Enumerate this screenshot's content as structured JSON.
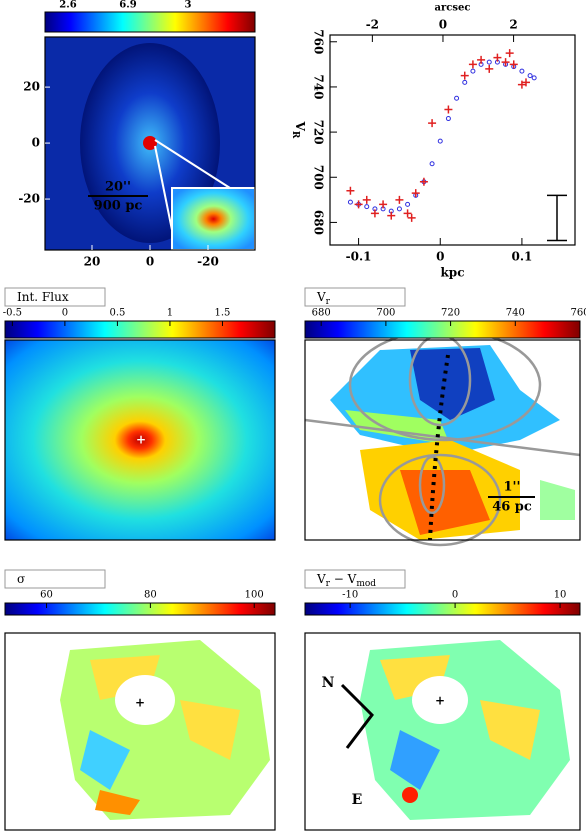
{
  "chart_data": [
    {
      "type": "image",
      "colorbar_labels": [
        "2.6",
        "6.9",
        "3"
      ],
      "xlim": [
        36.2,
        -36.2
      ],
      "xticks": [
        20,
        0,
        -20
      ],
      "ylim": [
        -38.2,
        37.9
      ],
      "yticks": [
        20,
        0,
        -20
      ],
      "annotations": [
        "20''",
        "900 pc"
      ]
    },
    {
      "type": "scatter",
      "x_label": "kpc",
      "x2_label": "arcsec",
      "y_label": "V",
      "y_label_sub": "R",
      "xlim": [
        -0.135,
        0.165
      ],
      "xticks": [
        -0.1,
        0,
        0.1
      ],
      "x2lim": [
        -3.2,
        3.74
      ],
      "x2ticks": [
        -2,
        0,
        2
      ],
      "ylim": [
        670,
        763
      ],
      "yticks": [
        680,
        700,
        720,
        740,
        760
      ],
      "series": [
        {
          "color": "#3030e0",
          "marker": "circle",
          "x": [
            -0.11,
            -0.1,
            -0.09,
            -0.08,
            -0.07,
            -0.06,
            -0.05,
            -0.04,
            -0.03,
            -0.02,
            -0.01,
            0,
            0.01,
            0.02,
            0.03,
            0.04,
            0.05,
            0.06,
            0.07,
            0.08,
            0.09,
            0.1,
            0.11,
            0.115
          ],
          "values": [
            689,
            688,
            687,
            686,
            686,
            685,
            686,
            688,
            692,
            698,
            706,
            716,
            726,
            735,
            742,
            747,
            750,
            751,
            751,
            750,
            749,
            747,
            745,
            744
          ]
        },
        {
          "color": "#e02020",
          "marker": "plus",
          "x": [
            -0.11,
            -0.1,
            -0.09,
            -0.08,
            -0.07,
            -0.06,
            -0.05,
            -0.04,
            -0.035,
            -0.03,
            -0.02,
            -0.01,
            0.01,
            0.03,
            0.04,
            0.05,
            0.06,
            0.07,
            0.08,
            0.085,
            0.09,
            0.1,
            0.105
          ],
          "values": [
            694,
            688,
            690,
            684,
            688,
            683,
            690,
            684,
            682,
            693,
            698,
            724,
            730,
            745,
            750,
            752,
            748,
            753,
            751,
            755,
            750,
            741,
            742
          ]
        }
      ]
    },
    {
      "type": "map",
      "label_parts": [
        [
          "Int. Flux",
          ""
        ]
      ],
      "clim": [
        -0.57,
        2.0
      ],
      "cticks": [
        -0.5,
        0,
        0.5,
        1,
        1.5
      ]
    },
    {
      "type": "map",
      "label_parts": [
        [
          "V",
          "r"
        ]
      ],
      "clim": [
        675,
        760
      ],
      "cticks": [
        680,
        700,
        720,
        740,
        760
      ],
      "annotations": [
        "1''",
        "46 pc"
      ]
    },
    {
      "type": "map",
      "label_parts": [
        [
          "σ",
          ""
        ]
      ],
      "clim": [
        52,
        104
      ],
      "cticks": [
        60,
        80,
        100
      ]
    },
    {
      "type": "map",
      "label_parts": [
        [
          "V",
          "r"
        ],
        [
          " − V",
          "mod"
        ]
      ],
      "clim": [
        -14.3,
        11.9
      ],
      "cticks": [
        -10,
        0,
        10
      ],
      "annotations": [
        "N",
        "E"
      ]
    }
  ]
}
